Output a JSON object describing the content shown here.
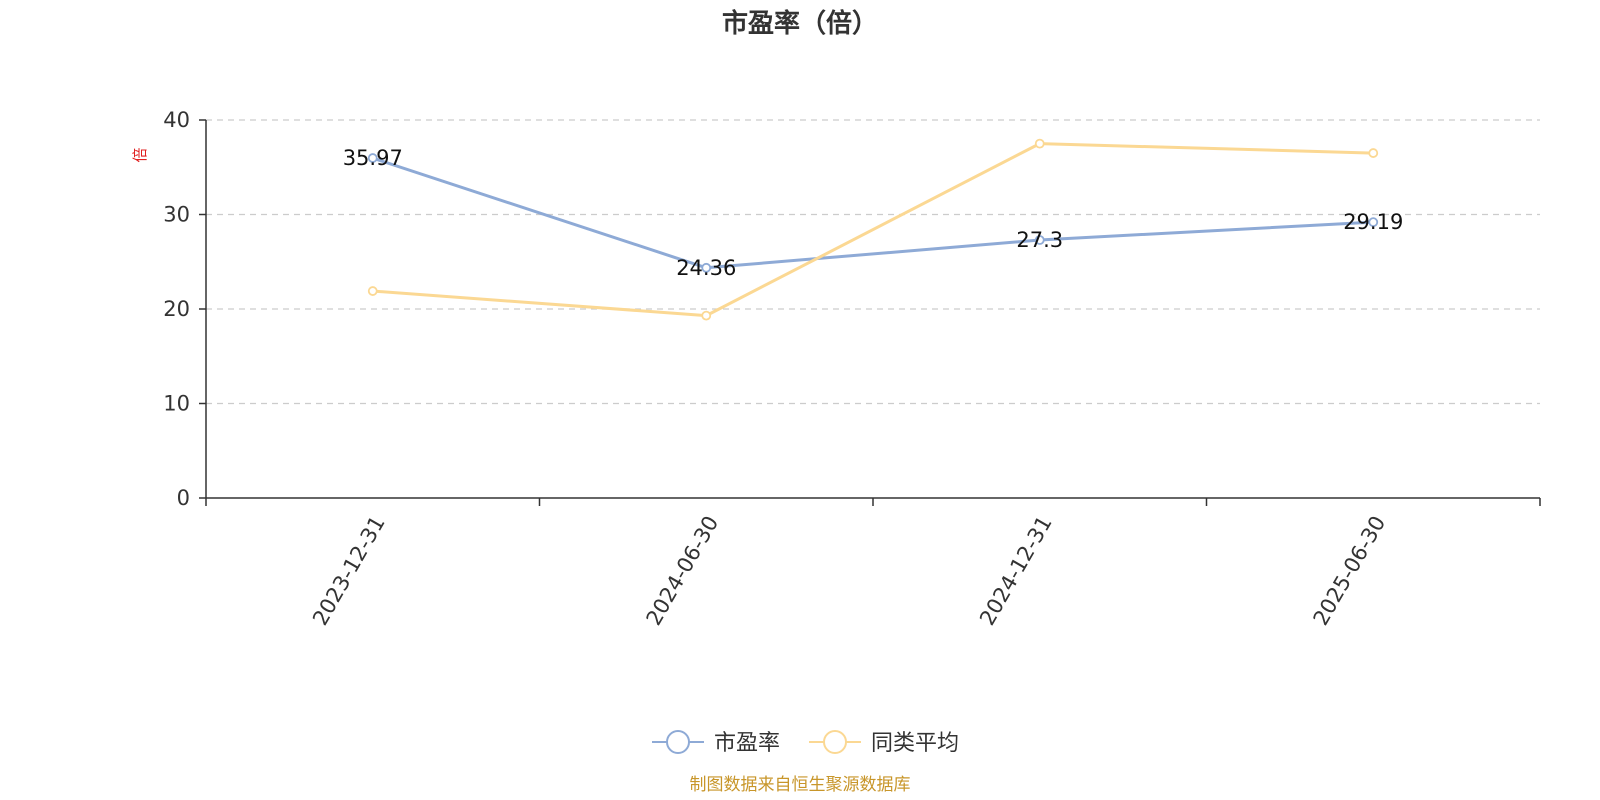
{
  "chart_data": {
    "type": "line",
    "title": "市盈率（倍）",
    "unit": "倍",
    "categories": [
      "2023-12-31",
      "2024-06-30",
      "2024-12-31",
      "2025-06-30"
    ],
    "yticks": [
      0,
      10,
      20,
      30,
      40
    ],
    "ylim": [
      0,
      40
    ],
    "grid": true,
    "legend_position": "bottom",
    "series": [
      {
        "name": "市盈率",
        "color": "#8eaad6",
        "values": [
          35.97,
          24.36,
          27.3,
          29.19
        ],
        "labels": [
          "35.97",
          "24.36",
          "27.3",
          "29.19"
        ],
        "show_labels": true
      },
      {
        "name": "同类平均",
        "color": "#fbd893",
        "values": [
          21.9,
          19.3,
          37.5,
          36.5
        ],
        "show_labels": false
      }
    ],
    "source": "制图数据来自恒生聚源数据库"
  }
}
